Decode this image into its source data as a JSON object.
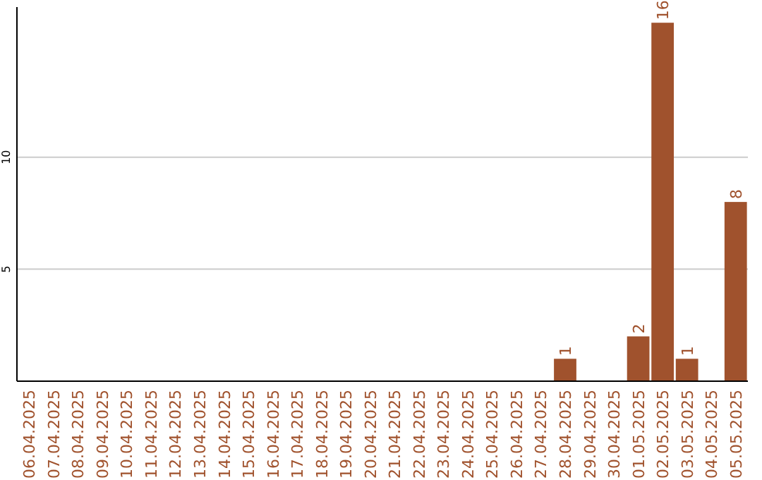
{
  "chart_data": {
    "type": "bar",
    "categories": [
      "06.04.2025",
      "07.04.2025",
      "08.04.2025",
      "09.04.2025",
      "10.04.2025",
      "11.04.2025",
      "12.04.2025",
      "13.04.2025",
      "14.04.2025",
      "15.04.2025",
      "16.04.2025",
      "17.04.2025",
      "18.04.2025",
      "19.04.2025",
      "20.04.2025",
      "21.04.2025",
      "22.04.2025",
      "23.04.2025",
      "24.04.2025",
      "25.04.2025",
      "26.04.2025",
      "27.04.2025",
      "28.04.2025",
      "29.04.2025",
      "30.04.2025",
      "01.05.2025",
      "02.05.2025",
      "03.05.2025",
      "04.05.2025",
      "05.05.2025"
    ],
    "values": [
      0,
      0,
      0,
      0,
      0,
      0,
      0,
      0,
      0,
      0,
      0,
      0,
      0,
      0,
      0,
      0,
      0,
      0,
      0,
      0,
      0,
      0,
      1,
      0,
      0,
      2,
      16,
      1,
      0,
      8
    ],
    "value_labels": [
      null,
      null,
      null,
      null,
      null,
      null,
      null,
      null,
      null,
      null,
      null,
      null,
      null,
      null,
      null,
      null,
      null,
      null,
      null,
      null,
      null,
      null,
      "1",
      null,
      null,
      "2",
      "16",
      "1",
      null,
      "8"
    ],
    "color": "#a0522d",
    "ylim": [
      0,
      16.7
    ],
    "yticks": [
      5,
      10
    ],
    "grid": "y"
  }
}
